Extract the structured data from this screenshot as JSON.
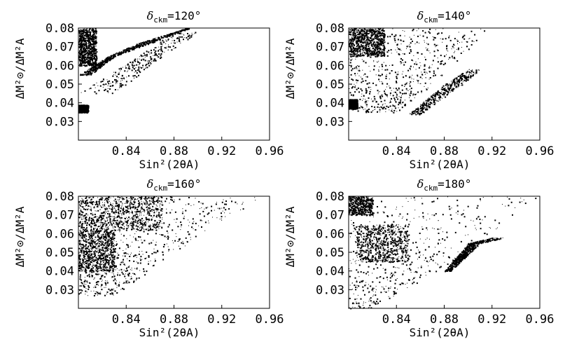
{
  "chart_data": [
    {
      "type": "scatter",
      "title": "δckm=120°",
      "title_symbol": "δ",
      "title_subscript": "ckm",
      "title_value": "=120°",
      "xlabel": "Sin²(2θA)",
      "ylabel": "ΔM²⊙/ΔM²A",
      "xlim": [
        0.8,
        0.96
      ],
      "ylim": [
        0.02,
        0.08
      ],
      "xticks": [
        "0.84",
        "0.88",
        "0.92",
        "0.96"
      ],
      "yticks": [
        "0.08",
        "0.07",
        "0.06",
        "0.05",
        "0.04",
        "0.03"
      ],
      "grid": false,
      "regions": [
        {
          "shape": "band",
          "x_lo": [
            0.8,
            0.825,
            0.85,
            0.875,
            0.89
          ],
          "x_hi": [
            0.81,
            0.83,
            0.86,
            0.88,
            0.893
          ],
          "y": [
            0.055,
            0.065,
            0.072,
            0.077,
            0.08
          ],
          "density": 0.8
        },
        {
          "shape": "blob",
          "x": [
            0.8,
            0.815
          ],
          "y": [
            0.06,
            0.08
          ],
          "density": 0.95
        },
        {
          "shape": "blob",
          "x": [
            0.8,
            0.808
          ],
          "y": [
            0.035,
            0.039
          ],
          "density": 0.9
        },
        {
          "shape": "band",
          "x_lo": [
            0.8,
            0.85,
            0.88
          ],
          "x_hi": [
            0.83,
            0.87,
            0.9
          ],
          "y": [
            0.045,
            0.065,
            0.078
          ],
          "density": 0.35
        }
      ]
    },
    {
      "type": "scatter",
      "title": "δckm=140°",
      "title_symbol": "δ",
      "title_subscript": "ckm",
      "title_value": "=140°",
      "xlabel": "Sin²(2θA)",
      "ylabel": "ΔM²⊙/ΔM²A",
      "xlim": [
        0.8,
        0.96
      ],
      "ylim": [
        0.02,
        0.08
      ],
      "xticks": [
        "0.84",
        "0.88",
        "0.92",
        "0.96"
      ],
      "yticks": [
        "0.08",
        "0.07",
        "0.06",
        "0.05",
        "0.04",
        "0.03"
      ],
      "grid": false,
      "regions": [
        {
          "shape": "band",
          "x_lo": [
            0.8,
            0.8,
            0.8,
            0.8
          ],
          "x_hi": [
            0.84,
            0.87,
            0.895,
            0.915
          ],
          "y": [
            0.035,
            0.05,
            0.065,
            0.08
          ],
          "density": 0.75
        },
        {
          "shape": "blob",
          "x": [
            0.8,
            0.83
          ],
          "y": [
            0.065,
            0.08
          ],
          "density": 0.95
        },
        {
          "shape": "blob",
          "x": [
            0.8,
            0.807
          ],
          "y": [
            0.037,
            0.042
          ],
          "density": 0.95
        },
        {
          "shape": "band",
          "x_lo": [
            0.85,
            0.88,
            0.9
          ],
          "x_hi": [
            0.86,
            0.895,
            0.91
          ],
          "y": [
            0.034,
            0.05,
            0.058
          ],
          "density": 0.5
        }
      ]
    },
    {
      "type": "scatter",
      "title": "δckm=160°",
      "title_symbol": "δ",
      "title_subscript": "ckm",
      "title_value": "=160°",
      "xlabel": "Sin²(2θA)",
      "ylabel": "ΔM²⊙/ΔM²A",
      "xlim": [
        0.8,
        0.96
      ],
      "ylim": [
        0.02,
        0.08
      ],
      "xticks": [
        "0.84",
        "0.88",
        "0.92",
        "0.96"
      ],
      "yticks": [
        "0.08",
        "0.07",
        "0.06",
        "0.05",
        "0.04",
        "0.03"
      ],
      "grid": false,
      "regions": [
        {
          "shape": "band",
          "x_lo": [
            0.8,
            0.8,
            0.8,
            0.8
          ],
          "x_hi": [
            0.83,
            0.87,
            0.915,
            0.955
          ],
          "y": [
            0.027,
            0.045,
            0.065,
            0.08
          ],
          "density": 0.8
        },
        {
          "shape": "blob",
          "x": [
            0.8,
            0.87
          ],
          "y": [
            0.062,
            0.08
          ],
          "density": 0.95
        },
        {
          "shape": "blob",
          "x": [
            0.8,
            0.83
          ],
          "y": [
            0.04,
            0.062
          ],
          "density": 0.85
        }
      ]
    },
    {
      "type": "scatter",
      "title": "δckm=180°",
      "title_symbol": "δ",
      "title_subscript": "ckm",
      "title_value": "=180°",
      "xlabel": "Sin²(2θA)",
      "ylabel": "ΔM²⊙/ΔM²A",
      "xlim": [
        0.8,
        0.96
      ],
      "ylim": [
        0.02,
        0.08
      ],
      "xticks": [
        "0.84",
        "0.88",
        "0.92",
        "0.96"
      ],
      "yticks": [
        "0.08",
        "0.07",
        "0.06",
        "0.05",
        "0.04",
        "0.03"
      ],
      "grid": false,
      "regions": [
        {
          "shape": "band",
          "x_lo": [
            0.8,
            0.8,
            0.8,
            0.8,
            0.8
          ],
          "x_hi": [
            0.82,
            0.86,
            0.9,
            0.93,
            0.958
          ],
          "y": [
            0.02,
            0.035,
            0.05,
            0.065,
            0.08
          ],
          "density": 0.55
        },
        {
          "shape": "blob",
          "x": [
            0.805,
            0.85
          ],
          "y": [
            0.045,
            0.065
          ],
          "density": 0.85
        },
        {
          "shape": "blob",
          "x": [
            0.8,
            0.82
          ],
          "y": [
            0.07,
            0.08
          ],
          "density": 0.6
        },
        {
          "shape": "band",
          "x_lo": [
            0.88,
            0.9,
            0.92
          ],
          "x_hi": [
            0.885,
            0.91,
            0.93
          ],
          "y": [
            0.04,
            0.055,
            0.058
          ],
          "density": 0.7
        }
      ]
    }
  ]
}
